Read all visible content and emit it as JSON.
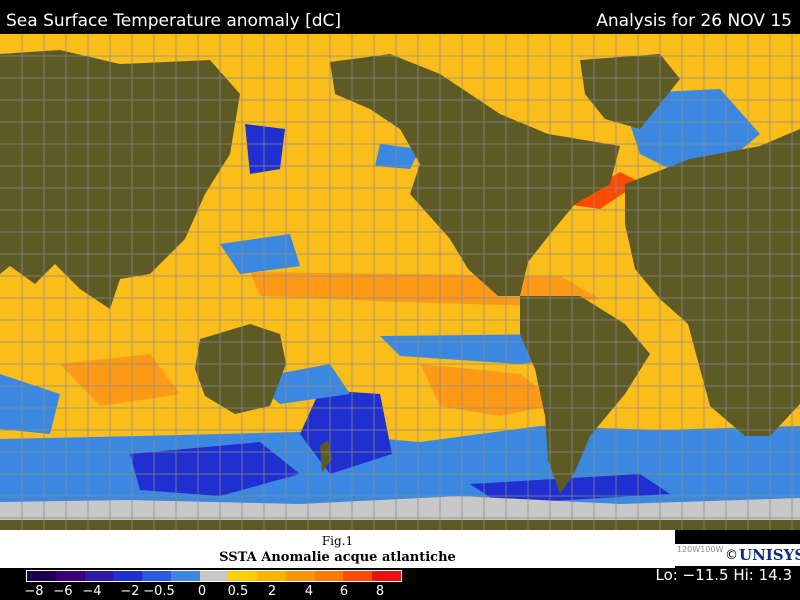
{
  "header": {
    "title": "Sea Surface Temperature anomaly [dC]",
    "analysis": "Analysis for 26 NOV 15"
  },
  "caption": {
    "fig": "Fig.1",
    "text": "SSTA Anomalie acque atlantiche"
  },
  "credit": {
    "meridians": "120W100W",
    "copyright": "©",
    "brand": "UNISYS"
  },
  "scale": {
    "colors": [
      "#1b0050",
      "#3a007a",
      "#2a1aa8",
      "#1f2fd0",
      "#2b5ae0",
      "#3a88e0",
      "#c8c8c8",
      "#ffd000",
      "#ffb400",
      "#ff9600",
      "#ff7800",
      "#ff4a00",
      "#ee1010"
    ],
    "ticks": [
      "−8",
      "−6",
      "−4",
      "−2",
      "−0.5",
      "0",
      "0.5",
      "2",
      "4",
      "6",
      "8"
    ]
  },
  "stats": {
    "lohi": "Lo: −11.5  Hi: 14.3"
  },
  "map": {
    "ocean_color": "#fbbd1a",
    "warm_color": "#ff9a18",
    "cool_color": "#3a8ae6",
    "cold_color": "#1530c8",
    "land_color": "#5e5a26",
    "ice_color": "#c8c8c8",
    "grid_color": "#8a8a8a"
  }
}
